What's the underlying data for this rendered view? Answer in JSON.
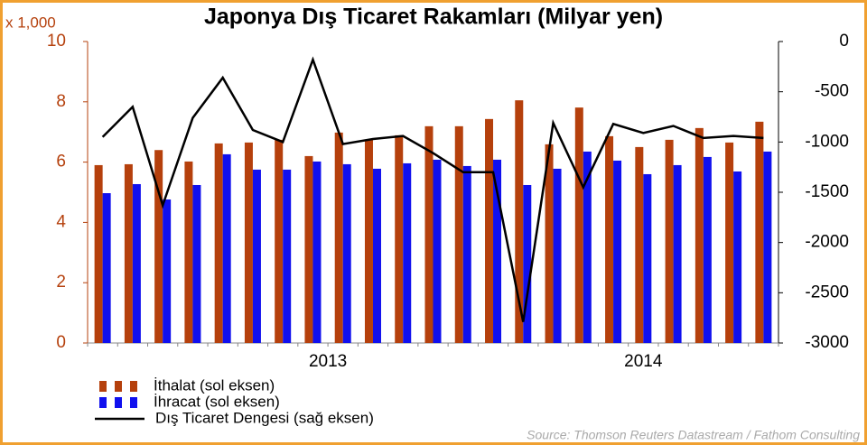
{
  "chart_data": {
    "type": "bar_line",
    "title": "Japonya Dış Ticaret Rakamları (Milyar yen)",
    "y_unit_label": "x 1,000",
    "source": "Source: Thomson Reuters Datastream / Fathom Consulting",
    "categories": [
      null,
      null,
      null,
      null,
      null,
      null,
      null,
      null,
      null,
      null,
      null,
      null,
      null,
      null,
      null,
      null,
      null,
      null,
      null,
      null,
      null,
      null,
      null
    ],
    "x_groups": [
      {
        "label": "2013",
        "start": 2,
        "end": 13
      },
      {
        "label": "2014",
        "start": 14,
        "end": 22
      }
    ],
    "series": [
      {
        "name": "İthalat (sol eksen)",
        "color": "#b5400c",
        "kind": "bar",
        "values": [
          5.9,
          5.93,
          6.4,
          6.02,
          6.62,
          6.65,
          6.74,
          6.2,
          6.98,
          6.74,
          6.89,
          7.19,
          7.19,
          7.43,
          8.05,
          6.59,
          7.81,
          6.86,
          6.5,
          6.74,
          7.13,
          6.65,
          7.34
        ]
      },
      {
        "name": "İhracat (sol eksen)",
        "color": "#1010ee",
        "kind": "bar",
        "values": [
          4.97,
          5.27,
          4.76,
          5.24,
          6.26,
          5.75,
          5.75,
          6.02,
          5.93,
          5.78,
          5.96,
          6.08,
          5.87,
          6.08,
          5.24,
          5.78,
          6.35,
          6.05,
          5.6,
          5.9,
          6.17,
          5.69,
          6.35
        ]
      },
      {
        "name": "Dış Ticaret Dengesi (sağ eksen)",
        "color": "#000000",
        "kind": "line",
        "axis": "y2",
        "values": [
          -950,
          -650,
          -1630,
          -760,
          -360,
          -880,
          -1000,
          -180,
          -1020,
          -970,
          -940,
          -1110,
          -1300,
          -1300,
          -2790,
          -810,
          -1450,
          -820,
          -910,
          -840,
          -960,
          -940,
          -960
        ]
      }
    ],
    "ylim": [
      0,
      10
    ],
    "yticks": [
      0,
      2,
      4,
      6,
      8,
      10
    ],
    "y2lim": [
      -3000,
      0
    ],
    "y2ticks": [
      -3000,
      -2500,
      -2000,
      -1500,
      -1000,
      -500,
      0
    ],
    "left_axis_color": "#b5400c"
  }
}
